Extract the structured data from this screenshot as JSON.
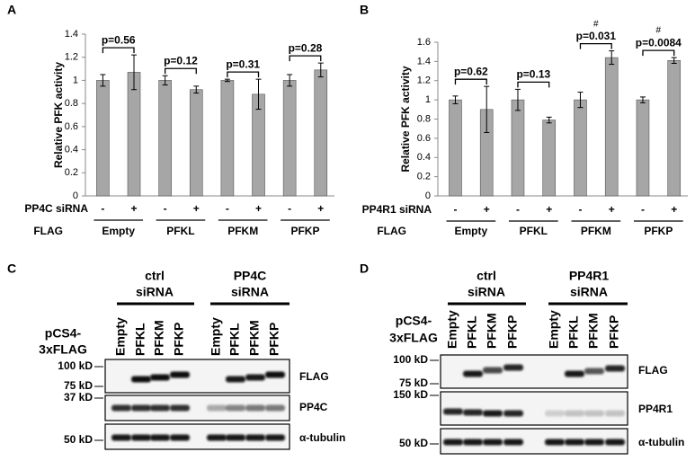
{
  "chart_data": [
    {
      "type": "bar",
      "panel": "A",
      "y_label": "Relative PFK activity",
      "color": "#a6a6a6",
      "ylim": [
        0,
        1.4
      ],
      "yticks": [
        0,
        0.2,
        0.4,
        0.6,
        0.8,
        1,
        1.2,
        1.4
      ],
      "row_labels": [
        "PP4C siRNA",
        "FLAG"
      ],
      "signs": [
        "-",
        "+",
        "-",
        "+",
        "-",
        "+",
        "-",
        "+"
      ],
      "groups": [
        "Empty",
        "PFKL",
        "PFKM",
        "PFKP"
      ],
      "values": [
        1.0,
        1.07,
        1.0,
        0.92,
        1.0,
        0.88,
        1.0,
        1.09
      ],
      "errors": [
        0.05,
        0.15,
        0.04,
        0.03,
        0.01,
        0.13,
        0.05,
        0.06
      ],
      "p_values": [
        "p=0.56",
        "p=0.12",
        "p=0.31",
        "p=0.28"
      ]
    },
    {
      "type": "bar",
      "panel": "B",
      "y_label": "Relative PFK activity",
      "color": "#a6a6a6",
      "ylim": [
        0,
        1.6
      ],
      "yticks": [
        0,
        0.2,
        0.4,
        0.6,
        0.8,
        1,
        1.2,
        1.4,
        1.6
      ],
      "row_labels": [
        "PP4R1 siRNA",
        "FLAG"
      ],
      "signs": [
        "-",
        "+",
        "-",
        "+",
        "-",
        "+",
        "-",
        "+"
      ],
      "groups": [
        "Empty",
        "PFKL",
        "PFKM",
        "PFKP"
      ],
      "values": [
        1.0,
        0.9,
        1.0,
        0.79,
        1.0,
        1.44,
        1.0,
        1.41
      ],
      "errors": [
        0.04,
        0.24,
        0.11,
        0.03,
        0.08,
        0.07,
        0.03,
        0.03
      ],
      "p_values": [
        "p=0.62",
        "p=0.13",
        "p=0.031",
        "p=0.0084"
      ],
      "significance": [
        null,
        null,
        "#",
        "#"
      ]
    }
  ],
  "blots": [
    {
      "panel": "C",
      "group_headers": [
        [
          "ctrl",
          "siRNA"
        ],
        [
          "PP4C",
          "siRNA"
        ]
      ],
      "row_label": [
        "pCS4-",
        "3xFLAG"
      ],
      "lanes": [
        "Empty",
        "PFKL",
        "PFKM",
        "PFKP",
        "Empty",
        "PFKL",
        "PFKM",
        "PFKP"
      ],
      "markers": [
        "100 kD",
        "75 kD",
        "37 kD",
        "50 kD"
      ],
      "bands": [
        "FLAG",
        "PP4C",
        "α-tubulin"
      ]
    },
    {
      "panel": "D",
      "group_headers": [
        [
          "ctrl",
          "siRNA"
        ],
        [
          "PP4R1",
          "siRNA"
        ]
      ],
      "row_label": [
        "pCS4-",
        "3xFLAG"
      ],
      "lanes": [
        "Empty",
        "PFKL",
        "PFKM",
        "PFKP",
        "Empty",
        "PFKL",
        "PFKM",
        "PFKP"
      ],
      "markers": [
        "100 kD",
        "75 kD",
        "150 kD",
        "50 kD"
      ],
      "bands": [
        "FLAG",
        "PP4R1",
        "α-tubulin"
      ]
    }
  ]
}
